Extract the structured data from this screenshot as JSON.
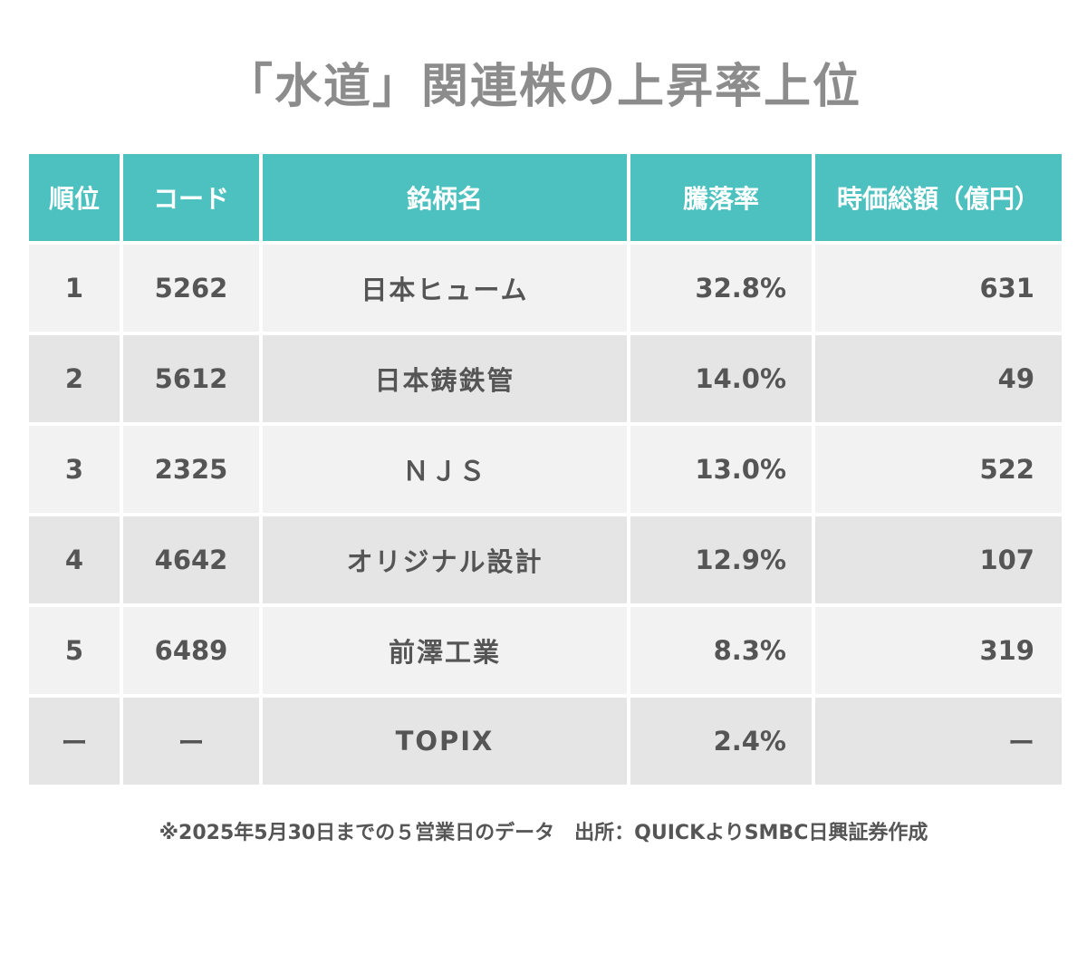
{
  "title": "「水道」関連株の上昇率上位",
  "chart_data": {
    "type": "table",
    "title": "「水道」関連株の上昇率上位",
    "columns": [
      "順位",
      "コード",
      "銘柄名",
      "騰落率",
      "時価総額（億円）"
    ],
    "rows": [
      {
        "rank": "1",
        "code": "5262",
        "name": "日本ヒューム",
        "change": "32.8%",
        "market_cap": "631"
      },
      {
        "rank": "2",
        "code": "5612",
        "name": "日本鋳鉄管",
        "change": "14.0%",
        "market_cap": "49"
      },
      {
        "rank": "3",
        "code": "2325",
        "name": "ＮＪＳ",
        "change": "13.0%",
        "market_cap": "522"
      },
      {
        "rank": "4",
        "code": "4642",
        "name": "オリジナル設計",
        "change": "12.9%",
        "market_cap": "107"
      },
      {
        "rank": "5",
        "code": "6489",
        "name": "前澤工業",
        "change": "8.3%",
        "market_cap": "319"
      },
      {
        "rank": "ー",
        "code": "ー",
        "name": "TOPIX",
        "change": "2.4%",
        "market_cap": "ー"
      }
    ]
  },
  "note": "※2025年5月30日までの５営業日のデータ　出所：QUICKよりSMBC日興証券作成",
  "colors": {
    "header_bg": "#4cc1bf",
    "header_text": "#ffffff",
    "row_odd": "#f2f2f2",
    "row_even": "#e5e5e5",
    "title": "#8c8c8c"
  }
}
